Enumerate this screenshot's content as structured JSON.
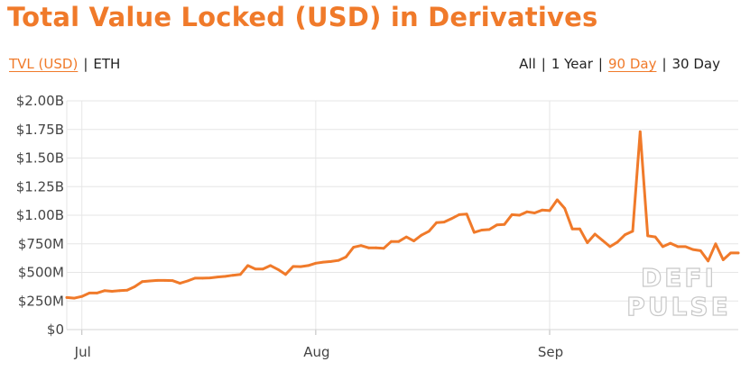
{
  "title": "Total Value Locked (USD) in Derivatives",
  "unit_toggle": [
    {
      "label": "TVL (USD)",
      "active": true
    },
    {
      "label": "ETH",
      "active": false
    }
  ],
  "range_toggle": [
    {
      "label": "All",
      "active": false
    },
    {
      "label": "1 Year",
      "active": false
    },
    {
      "label": "90 Day",
      "active": true
    },
    {
      "label": "30 Day",
      "active": false
    }
  ],
  "watermark": [
    "DEFI",
    "PULSE"
  ],
  "colors": {
    "line": "#f07a2a",
    "accent": "#f07a2a",
    "grid": "#e6e6e6",
    "text": "#444444"
  },
  "chart_data": {
    "type": "line",
    "title": "Total Value Locked (USD) in Derivatives",
    "xlabel": "",
    "ylabel": "",
    "ylim": [
      0,
      2000000000
    ],
    "y_ticks": [
      0,
      250000000,
      500000000,
      750000000,
      1000000000,
      1250000000,
      1500000000,
      1750000000,
      2000000000
    ],
    "y_tick_labels": [
      "$0",
      "$250M",
      "$500M",
      "$750M",
      "$1.00B",
      "$1.25B",
      "$1.50B",
      "$1.75B",
      "$2.00B"
    ],
    "x_range": [
      "2020-06-29",
      "2020-09-26"
    ],
    "x_ticks": [
      "2020-07-01",
      "2020-08-01",
      "2020-09-01"
    ],
    "x_tick_labels": [
      "Jul",
      "Aug",
      "Sep"
    ],
    "grid": true,
    "legend": "none",
    "series": [
      {
        "x": [
          "2020-06-29",
          "2020-06-30",
          "2020-07-01",
          "2020-07-02",
          "2020-07-03",
          "2020-07-04",
          "2020-07-05",
          "2020-07-06",
          "2020-07-07",
          "2020-07-08",
          "2020-07-09",
          "2020-07-10",
          "2020-07-11",
          "2020-07-12",
          "2020-07-13",
          "2020-07-14",
          "2020-07-15",
          "2020-07-16",
          "2020-07-17",
          "2020-07-18",
          "2020-07-19",
          "2020-07-20",
          "2020-07-21",
          "2020-07-22",
          "2020-07-23",
          "2020-07-24",
          "2020-07-25",
          "2020-07-26",
          "2020-07-27",
          "2020-07-28",
          "2020-07-29",
          "2020-07-30",
          "2020-07-31",
          "2020-08-01",
          "2020-08-02",
          "2020-08-03",
          "2020-08-04",
          "2020-08-05",
          "2020-08-06",
          "2020-08-07",
          "2020-08-08",
          "2020-08-09",
          "2020-08-10",
          "2020-08-11",
          "2020-08-12",
          "2020-08-13",
          "2020-08-14",
          "2020-08-15",
          "2020-08-16",
          "2020-08-17",
          "2020-08-18",
          "2020-08-19",
          "2020-08-20",
          "2020-08-21",
          "2020-08-22",
          "2020-08-23",
          "2020-08-24",
          "2020-08-25",
          "2020-08-26",
          "2020-08-27",
          "2020-08-28",
          "2020-08-29",
          "2020-08-30",
          "2020-08-31",
          "2020-09-01",
          "2020-09-02",
          "2020-09-03",
          "2020-09-04",
          "2020-09-05",
          "2020-09-06",
          "2020-09-07",
          "2020-09-08",
          "2020-09-09",
          "2020-09-10",
          "2020-09-11",
          "2020-09-12",
          "2020-09-13",
          "2020-09-14",
          "2020-09-15",
          "2020-09-16",
          "2020-09-17",
          "2020-09-18",
          "2020-09-19",
          "2020-09-20",
          "2020-09-21",
          "2020-09-22",
          "2020-09-23",
          "2020-09-24",
          "2020-09-25",
          "2020-09-26"
        ],
        "y": [
          280000000,
          275000000,
          290000000,
          320000000,
          320000000,
          340000000,
          335000000,
          340000000,
          345000000,
          375000000,
          420000000,
          425000000,
          430000000,
          430000000,
          428000000,
          405000000,
          425000000,
          450000000,
          450000000,
          452000000,
          460000000,
          465000000,
          475000000,
          482000000,
          560000000,
          530000000,
          530000000,
          560000000,
          525000000,
          482000000,
          552000000,
          550000000,
          560000000,
          580000000,
          590000000,
          595000000,
          605000000,
          635000000,
          720000000,
          735000000,
          715000000,
          715000000,
          710000000,
          770000000,
          770000000,
          810000000,
          775000000,
          825000000,
          860000000,
          935000000,
          940000000,
          970000000,
          1005000000,
          1010000000,
          850000000,
          870000000,
          875000000,
          915000000,
          920000000,
          1005000000,
          1000000000,
          1030000000,
          1020000000,
          1045000000,
          1040000000,
          1135000000,
          1060000000,
          880000000,
          880000000,
          760000000,
          835000000,
          780000000,
          725000000,
          765000000,
          830000000,
          860000000,
          1730000000,
          820000000,
          810000000,
          725000000,
          755000000,
          725000000,
          725000000,
          700000000,
          690000000,
          600000000,
          750000000,
          610000000,
          670000000,
          670000000
        ]
      }
    ]
  }
}
